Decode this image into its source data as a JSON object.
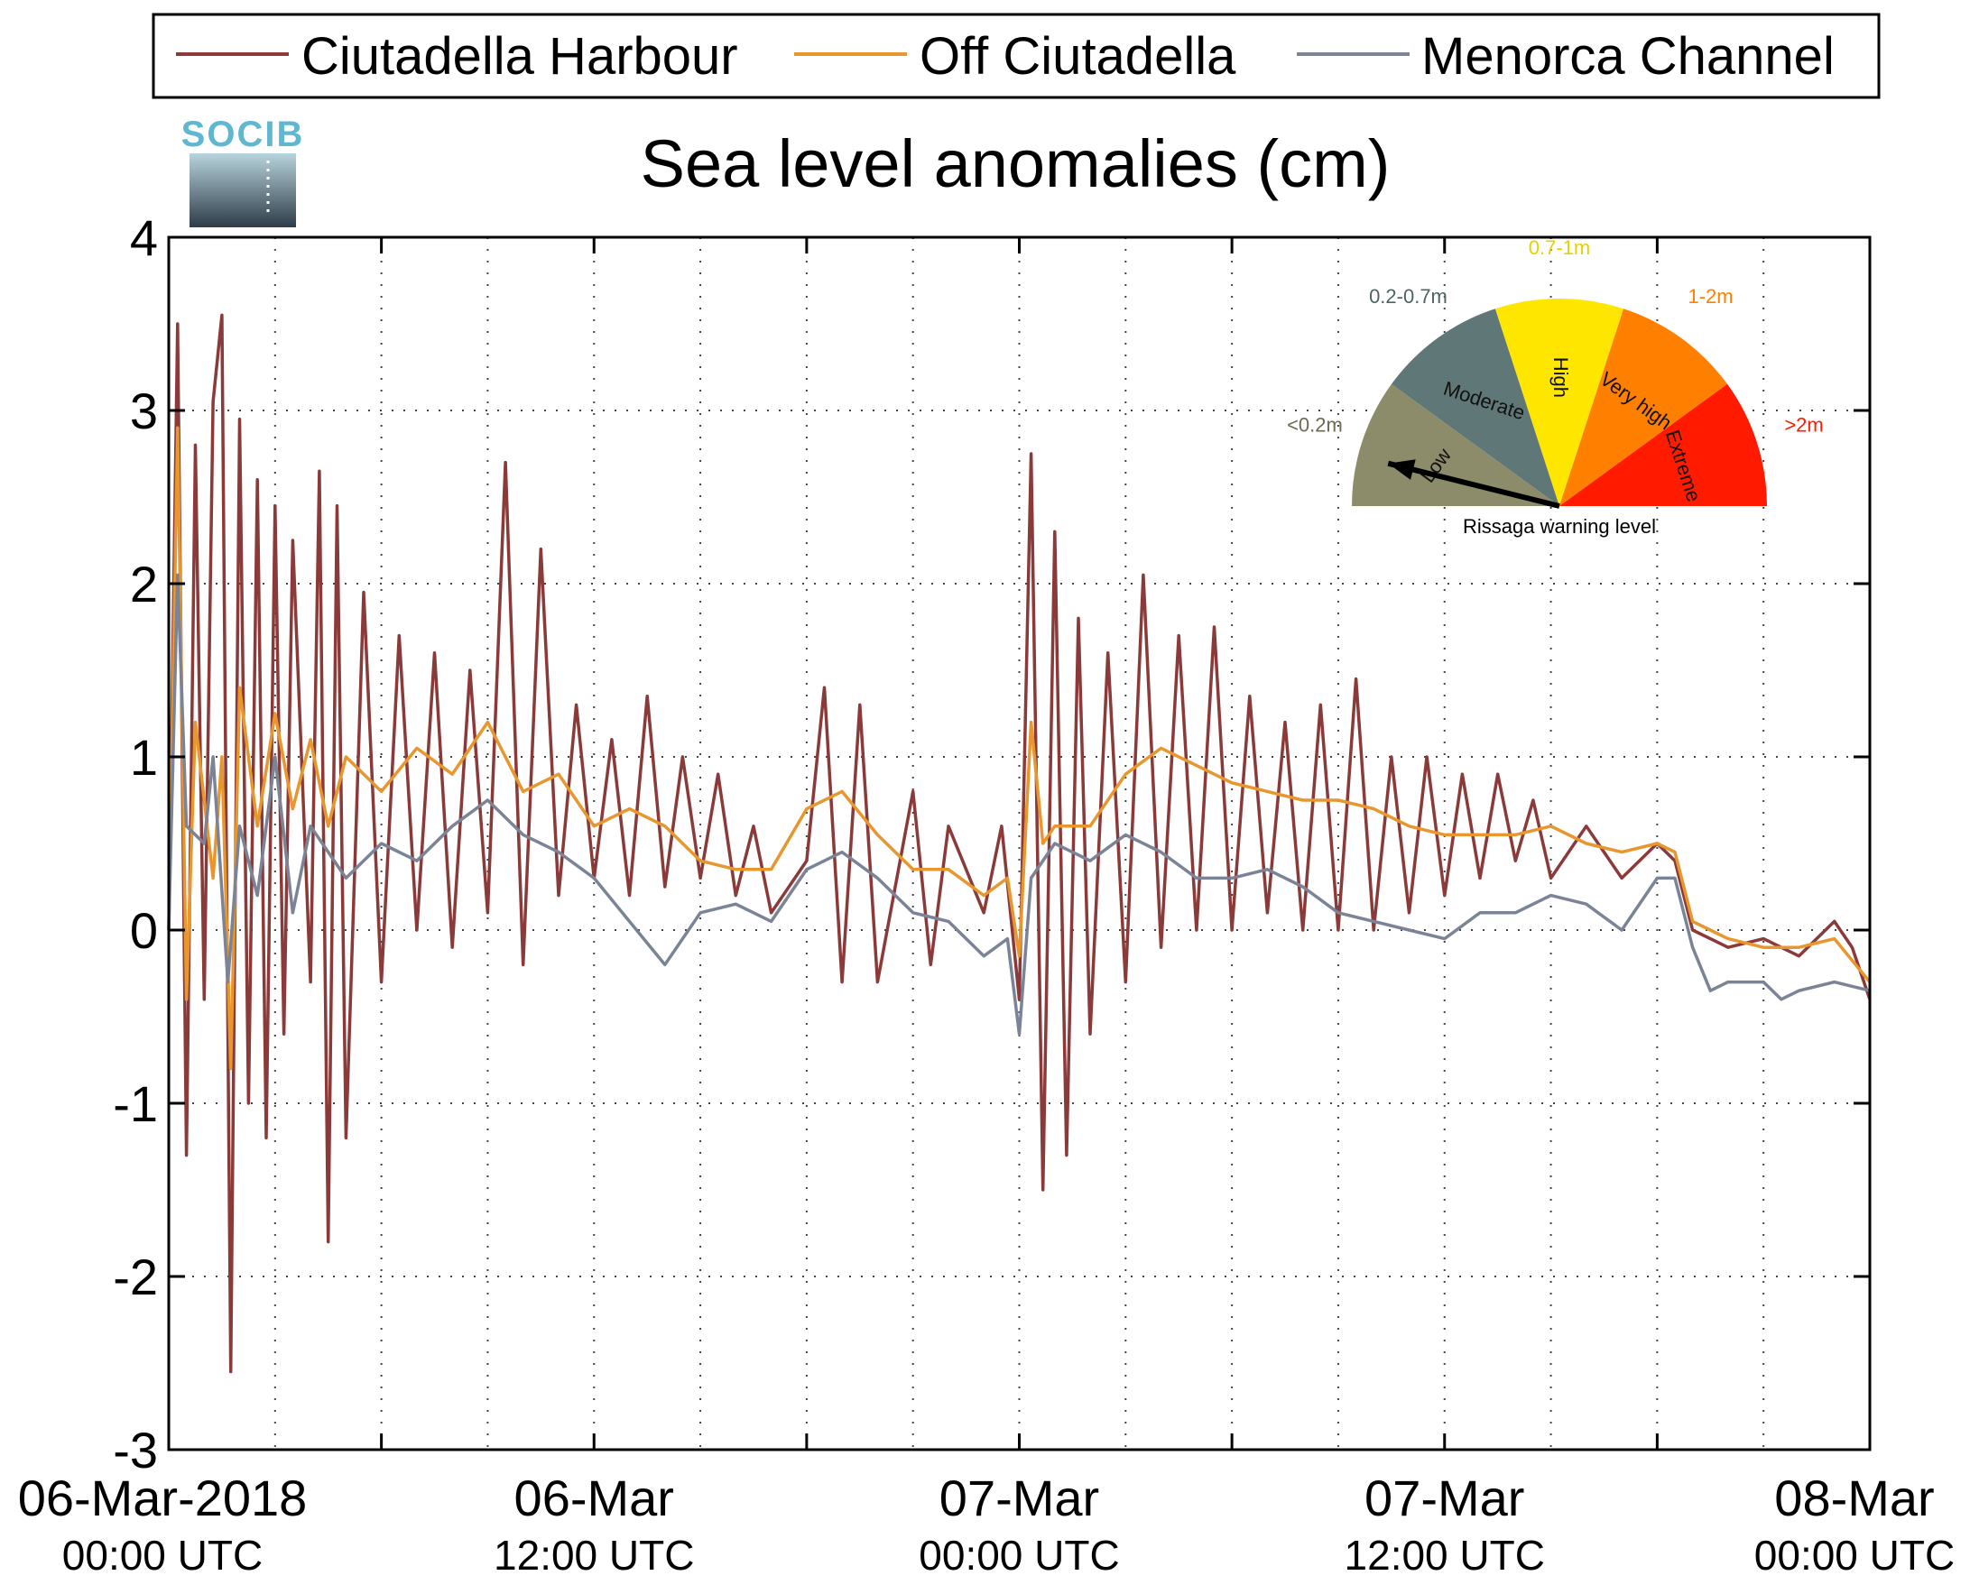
{
  "chart_data": {
    "type": "line",
    "title": "Sea level anomalies (cm)",
    "logo_text": "SOCIB",
    "ylim": [
      -3,
      4
    ],
    "yticks": [
      -3,
      -2,
      -1,
      0,
      1,
      2,
      3,
      4
    ],
    "xlim": [
      "06-Mar-2018 00:00",
      "08-Mar-2018 00:00"
    ],
    "grid": true,
    "legend_position": "top (outside plot)",
    "xtick_labels": [
      {
        "date": "06-Mar-2018",
        "time": "00:00 UTC"
      },
      {
        "date": "06-Mar",
        "time": "12:00 UTC"
      },
      {
        "date": "07-Mar",
        "time": "00:00 UTC"
      },
      {
        "date": "07-Mar",
        "time": "12:00 UTC"
      },
      {
        "date": "08-Mar",
        "time": "00:00 UTC"
      }
    ],
    "series": [
      {
        "name": "Ciutadella Harbour",
        "color": "#8b3a3a",
        "points": [
          [
            "06-Mar-2018 00:00",
            0.0
          ],
          [
            "06-Mar-2018 00:15",
            3.5
          ],
          [
            "06-Mar-2018 00:30",
            -1.3
          ],
          [
            "06-Mar-2018 00:45",
            2.8
          ],
          [
            "06-Mar-2018 01:00",
            -0.4
          ],
          [
            "06-Mar-2018 01:15",
            3.05
          ],
          [
            "06-Mar-2018 01:30",
            3.55
          ],
          [
            "06-Mar-2018 01:45",
            -2.55
          ],
          [
            "06-Mar-2018 02:00",
            2.95
          ],
          [
            "06-Mar-2018 02:15",
            -1.0
          ],
          [
            "06-Mar-2018 02:30",
            2.6
          ],
          [
            "06-Mar-2018 02:45",
            -1.2
          ],
          [
            "06-Mar-2018 03:00",
            2.45
          ],
          [
            "06-Mar-2018 03:15",
            -0.6
          ],
          [
            "06-Mar-2018 03:30",
            2.25
          ],
          [
            "06-Mar-2018 04:00",
            -0.3
          ],
          [
            "06-Mar-2018 04:15",
            2.65
          ],
          [
            "06-Mar-2018 04:30",
            -1.8
          ],
          [
            "06-Mar-2018 04:45",
            2.45
          ],
          [
            "06-Mar-2018 05:00",
            -1.2
          ],
          [
            "06-Mar-2018 05:30",
            1.95
          ],
          [
            "06-Mar-2018 06:00",
            -0.3
          ],
          [
            "06-Mar-2018 06:30",
            1.7
          ],
          [
            "06-Mar-2018 07:00",
            0.0
          ],
          [
            "06-Mar-2018 07:30",
            1.6
          ],
          [
            "06-Mar-2018 08:00",
            -0.1
          ],
          [
            "06-Mar-2018 08:30",
            1.5
          ],
          [
            "06-Mar-2018 09:00",
            0.1
          ],
          [
            "06-Mar-2018 09:30",
            2.7
          ],
          [
            "06-Mar-2018 10:00",
            -0.2
          ],
          [
            "06-Mar-2018 10:30",
            2.2
          ],
          [
            "06-Mar-2018 11:00",
            0.2
          ],
          [
            "06-Mar-2018 11:30",
            1.3
          ],
          [
            "06-Mar-2018 12:00",
            0.3
          ],
          [
            "06-Mar-2018 12:30",
            1.1
          ],
          [
            "06-Mar-2018 13:00",
            0.2
          ],
          [
            "06-Mar-2018 13:30",
            1.35
          ],
          [
            "06-Mar-2018 14:00",
            0.25
          ],
          [
            "06-Mar-2018 14:30",
            1.0
          ],
          [
            "06-Mar-2018 15:00",
            0.3
          ],
          [
            "06-Mar-2018 15:30",
            0.9
          ],
          [
            "06-Mar-2018 16:00",
            0.2
          ],
          [
            "06-Mar-2018 16:30",
            0.6
          ],
          [
            "06-Mar-2018 17:00",
            0.1
          ],
          [
            "06-Mar-2018 18:00",
            0.4
          ],
          [
            "06-Mar-2018 18:30",
            1.4
          ],
          [
            "06-Mar-2018 19:00",
            -0.3
          ],
          [
            "06-Mar-2018 19:30",
            1.3
          ],
          [
            "06-Mar-2018 20:00",
            -0.3
          ],
          [
            "06-Mar-2018 21:00",
            0.8
          ],
          [
            "06-Mar-2018 21:30",
            -0.2
          ],
          [
            "06-Mar-2018 22:00",
            0.6
          ],
          [
            "06-Mar-2018 23:00",
            0.1
          ],
          [
            "06-Mar-2018 23:30",
            0.6
          ],
          [
            "07-Mar-2018 00:00",
            -0.4
          ],
          [
            "07-Mar-2018 00:20",
            2.75
          ],
          [
            "07-Mar-2018 00:40",
            -1.5
          ],
          [
            "07-Mar-2018 01:00",
            2.3
          ],
          [
            "07-Mar-2018 01:20",
            -1.3
          ],
          [
            "07-Mar-2018 01:40",
            1.8
          ],
          [
            "07-Mar-2018 02:00",
            -0.6
          ],
          [
            "07-Mar-2018 02:30",
            1.6
          ],
          [
            "07-Mar-2018 03:00",
            -0.3
          ],
          [
            "07-Mar-2018 03:30",
            2.05
          ],
          [
            "07-Mar-2018 04:00",
            -0.1
          ],
          [
            "07-Mar-2018 04:30",
            1.7
          ],
          [
            "07-Mar-2018 05:00",
            0.0
          ],
          [
            "07-Mar-2018 05:30",
            1.75
          ],
          [
            "07-Mar-2018 06:00",
            0.0
          ],
          [
            "07-Mar-2018 06:30",
            1.35
          ],
          [
            "07-Mar-2018 07:00",
            0.1
          ],
          [
            "07-Mar-2018 07:30",
            1.2
          ],
          [
            "07-Mar-2018 08:00",
            0.0
          ],
          [
            "07-Mar-2018 08:30",
            1.3
          ],
          [
            "07-Mar-2018 09:00",
            0.0
          ],
          [
            "07-Mar-2018 09:30",
            1.45
          ],
          [
            "07-Mar-2018 10:00",
            0.0
          ],
          [
            "07-Mar-2018 10:30",
            1.0
          ],
          [
            "07-Mar-2018 11:00",
            0.1
          ],
          [
            "07-Mar-2018 11:30",
            1.0
          ],
          [
            "07-Mar-2018 12:00",
            0.2
          ],
          [
            "07-Mar-2018 12:30",
            0.9
          ],
          [
            "07-Mar-2018 13:00",
            0.3
          ],
          [
            "07-Mar-2018 13:30",
            0.9
          ],
          [
            "07-Mar-2018 14:00",
            0.4
          ],
          [
            "07-Mar-2018 14:30",
            0.75
          ],
          [
            "07-Mar-2018 15:00",
            0.3
          ],
          [
            "07-Mar-2018 16:00",
            0.6
          ],
          [
            "07-Mar-2018 17:00",
            0.3
          ],
          [
            "07-Mar-2018 18:00",
            0.5
          ],
          [
            "07-Mar-2018 18:30",
            0.4
          ],
          [
            "07-Mar-2018 19:00",
            0.0
          ],
          [
            "07-Mar-2018 20:00",
            -0.1
          ],
          [
            "07-Mar-2018 21:00",
            -0.05
          ],
          [
            "07-Mar-2018 22:00",
            -0.15
          ],
          [
            "07-Mar-2018 23:00",
            0.05
          ],
          [
            "07-Mar-2018 23:30",
            -0.1
          ],
          [
            "08-Mar-2018 00:00",
            -0.4
          ]
        ]
      },
      {
        "name": "Off Ciutadella",
        "color": "#e8972e",
        "points": [
          [
            "06-Mar-2018 00:00",
            0.0
          ],
          [
            "06-Mar-2018 00:15",
            2.9
          ],
          [
            "06-Mar-2018 00:30",
            -0.4
          ],
          [
            "06-Mar-2018 00:45",
            1.2
          ],
          [
            "06-Mar-2018 01:15",
            0.3
          ],
          [
            "06-Mar-2018 01:30",
            1.0
          ],
          [
            "06-Mar-2018 01:45",
            -0.8
          ],
          [
            "06-Mar-2018 02:00",
            1.4
          ],
          [
            "06-Mar-2018 02:30",
            0.6
          ],
          [
            "06-Mar-2018 03:00",
            1.25
          ],
          [
            "06-Mar-2018 03:30",
            0.7
          ],
          [
            "06-Mar-2018 04:00",
            1.1
          ],
          [
            "06-Mar-2018 04:30",
            0.6
          ],
          [
            "06-Mar-2018 05:00",
            1.0
          ],
          [
            "06-Mar-2018 06:00",
            0.8
          ],
          [
            "06-Mar-2018 07:00",
            1.05
          ],
          [
            "06-Mar-2018 08:00",
            0.9
          ],
          [
            "06-Mar-2018 09:00",
            1.2
          ],
          [
            "06-Mar-2018 10:00",
            0.8
          ],
          [
            "06-Mar-2018 11:00",
            0.9
          ],
          [
            "06-Mar-2018 12:00",
            0.6
          ],
          [
            "06-Mar-2018 13:00",
            0.7
          ],
          [
            "06-Mar-2018 14:00",
            0.6
          ],
          [
            "06-Mar-2018 15:00",
            0.4
          ],
          [
            "06-Mar-2018 16:00",
            0.35
          ],
          [
            "06-Mar-2018 17:00",
            0.35
          ],
          [
            "06-Mar-2018 18:00",
            0.7
          ],
          [
            "06-Mar-2018 19:00",
            0.8
          ],
          [
            "06-Mar-2018 20:00",
            0.55
          ],
          [
            "06-Mar-2018 21:00",
            0.35
          ],
          [
            "06-Mar-2018 22:00",
            0.35
          ],
          [
            "06-Mar-2018 23:00",
            0.2
          ],
          [
            "06-Mar-2018 23:40",
            0.3
          ],
          [
            "07-Mar-2018 00:00",
            -0.15
          ],
          [
            "07-Mar-2018 00:20",
            1.2
          ],
          [
            "07-Mar-2018 00:40",
            0.5
          ],
          [
            "07-Mar-2018 01:00",
            0.6
          ],
          [
            "07-Mar-2018 02:00",
            0.6
          ],
          [
            "07-Mar-2018 03:00",
            0.9
          ],
          [
            "07-Mar-2018 04:00",
            1.05
          ],
          [
            "07-Mar-2018 05:00",
            0.95
          ],
          [
            "07-Mar-2018 06:00",
            0.85
          ],
          [
            "07-Mar-2018 07:00",
            0.8
          ],
          [
            "07-Mar-2018 08:00",
            0.75
          ],
          [
            "07-Mar-2018 09:00",
            0.75
          ],
          [
            "07-Mar-2018 10:00",
            0.7
          ],
          [
            "07-Mar-2018 11:00",
            0.6
          ],
          [
            "07-Mar-2018 12:00",
            0.55
          ],
          [
            "07-Mar-2018 13:00",
            0.55
          ],
          [
            "07-Mar-2018 14:00",
            0.55
          ],
          [
            "07-Mar-2018 15:00",
            0.6
          ],
          [
            "07-Mar-2018 16:00",
            0.5
          ],
          [
            "07-Mar-2018 17:00",
            0.45
          ],
          [
            "07-Mar-2018 18:00",
            0.5
          ],
          [
            "07-Mar-2018 18:30",
            0.45
          ],
          [
            "07-Mar-2018 19:00",
            0.05
          ],
          [
            "07-Mar-2018 20:00",
            -0.05
          ],
          [
            "07-Mar-2018 21:00",
            -0.1
          ],
          [
            "07-Mar-2018 22:00",
            -0.1
          ],
          [
            "07-Mar-2018 23:00",
            -0.05
          ],
          [
            "08-Mar-2018 00:00",
            -0.3
          ]
        ]
      },
      {
        "name": "Menorca Channel",
        "color": "#7b8496",
        "points": [
          [
            "06-Mar-2018 00:00",
            0.0
          ],
          [
            "06-Mar-2018 00:15",
            2.05
          ],
          [
            "06-Mar-2018 00:30",
            0.6
          ],
          [
            "06-Mar-2018 01:00",
            0.5
          ],
          [
            "06-Mar-2018 01:15",
            1.0
          ],
          [
            "06-Mar-2018 01:40",
            -0.3
          ],
          [
            "06-Mar-2018 02:00",
            0.6
          ],
          [
            "06-Mar-2018 02:30",
            0.2
          ],
          [
            "06-Mar-2018 03:00",
            1.0
          ],
          [
            "06-Mar-2018 03:30",
            0.1
          ],
          [
            "06-Mar-2018 04:00",
            0.6
          ],
          [
            "06-Mar-2018 05:00",
            0.3
          ],
          [
            "06-Mar-2018 06:00",
            0.5
          ],
          [
            "06-Mar-2018 07:00",
            0.4
          ],
          [
            "06-Mar-2018 08:00",
            0.6
          ],
          [
            "06-Mar-2018 09:00",
            0.75
          ],
          [
            "06-Mar-2018 10:00",
            0.55
          ],
          [
            "06-Mar-2018 11:00",
            0.45
          ],
          [
            "06-Mar-2018 12:00",
            0.3
          ],
          [
            "06-Mar-2018 13:00",
            0.05
          ],
          [
            "06-Mar-2018 14:00",
            -0.2
          ],
          [
            "06-Mar-2018 15:00",
            0.1
          ],
          [
            "06-Mar-2018 16:00",
            0.15
          ],
          [
            "06-Mar-2018 17:00",
            0.05
          ],
          [
            "06-Mar-2018 18:00",
            0.35
          ],
          [
            "06-Mar-2018 19:00",
            0.45
          ],
          [
            "06-Mar-2018 20:00",
            0.3
          ],
          [
            "06-Mar-2018 21:00",
            0.1
          ],
          [
            "06-Mar-2018 22:00",
            0.05
          ],
          [
            "06-Mar-2018 23:00",
            -0.15
          ],
          [
            "06-Mar-2018 23:40",
            -0.05
          ],
          [
            "07-Mar-2018 00:00",
            -0.6
          ],
          [
            "07-Mar-2018 00:20",
            0.3
          ],
          [
            "07-Mar-2018 01:00",
            0.5
          ],
          [
            "07-Mar-2018 02:00",
            0.4
          ],
          [
            "07-Mar-2018 03:00",
            0.55
          ],
          [
            "07-Mar-2018 04:00",
            0.45
          ],
          [
            "07-Mar-2018 05:00",
            0.3
          ],
          [
            "07-Mar-2018 06:00",
            0.3
          ],
          [
            "07-Mar-2018 07:00",
            0.35
          ],
          [
            "07-Mar-2018 08:00",
            0.25
          ],
          [
            "07-Mar-2018 09:00",
            0.1
          ],
          [
            "07-Mar-2018 10:00",
            0.05
          ],
          [
            "07-Mar-2018 11:00",
            0.0
          ],
          [
            "07-Mar-2018 12:00",
            -0.05
          ],
          [
            "07-Mar-2018 13:00",
            0.1
          ],
          [
            "07-Mar-2018 14:00",
            0.1
          ],
          [
            "07-Mar-2018 15:00",
            0.2
          ],
          [
            "07-Mar-2018 16:00",
            0.15
          ],
          [
            "07-Mar-2018 17:00",
            0.0
          ],
          [
            "07-Mar-2018 18:00",
            0.3
          ],
          [
            "07-Mar-2018 18:30",
            0.3
          ],
          [
            "07-Mar-2018 19:00",
            -0.1
          ],
          [
            "07-Mar-2018 19:30",
            -0.35
          ],
          [
            "07-Mar-2018 20:00",
            -0.3
          ],
          [
            "07-Mar-2018 21:00",
            -0.3
          ],
          [
            "07-Mar-2018 21:30",
            -0.4
          ],
          [
            "07-Mar-2018 22:00",
            -0.35
          ],
          [
            "07-Mar-2018 23:00",
            -0.3
          ],
          [
            "08-Mar-2018 00:00",
            -0.35
          ]
        ]
      }
    ]
  },
  "inset": {
    "caption": "Rissaga warning level",
    "needle_level": "Low",
    "levels": [
      {
        "label": "Low",
        "range": "<0.2m",
        "color": "#8c8c6a",
        "range_color": "#6b6b4e"
      },
      {
        "label": "Moderate",
        "range": "0.2-0.7m",
        "color": "#607777",
        "range_color": "#4e6464"
      },
      {
        "label": "High",
        "range": "0.7-1m",
        "color": "#ffe600",
        "range_color": "#e8d000"
      },
      {
        "label": "Very high",
        "range": "1-2m",
        "color": "#ff7f00",
        "range_color": "#ff7f00"
      },
      {
        "label": "Extreme",
        "range": ">2m",
        "color": "#ff1a00",
        "range_color": "#ff1a00"
      }
    ]
  }
}
